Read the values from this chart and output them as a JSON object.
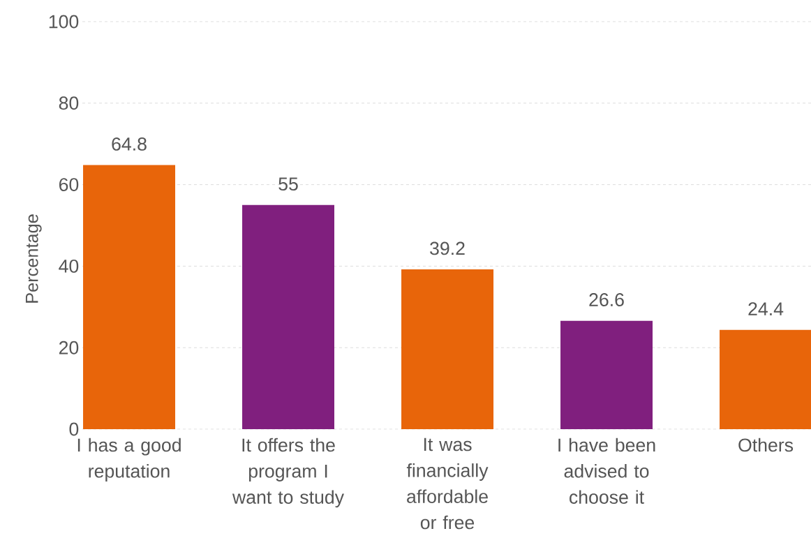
{
  "chart_data": {
    "type": "bar",
    "ylabel": "Percentage",
    "categories": [
      "I has a good reputation",
      "It offers the program I want to study",
      "It was financially affordable or free",
      "I have been advised to choose it",
      "Others"
    ],
    "values": [
      64.8,
      55,
      39.2,
      26.6,
      24.4
    ],
    "colors": [
      "#e8650a",
      "#801f7e",
      "#e8650a",
      "#801f7e",
      "#e8650a"
    ],
    "ylim": [
      0,
      100
    ],
    "yticks": [
      0,
      20,
      40,
      60,
      80,
      100
    ],
    "grid": "y",
    "data_labels": true
  }
}
